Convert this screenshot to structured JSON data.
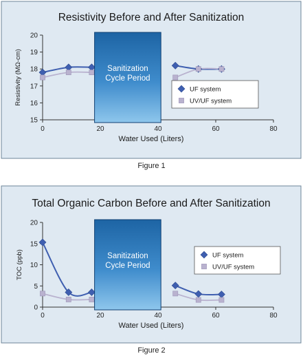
{
  "colors": {
    "panel_bg": "#dfe9f2",
    "panel_border": "#6d8598",
    "uf": "#3f5fb0",
    "uvuf": "#b9b2cf",
    "cycle_dark": "#1d64a4",
    "cycle_light": "#8ec6ec"
  },
  "icons": {
    "uf_marker": "diamond-icon",
    "uvuf_marker": "square-icon"
  },
  "chart_data": [
    {
      "type": "line",
      "title": "Resistivity Before and After Sanitization",
      "xlabel": "Water Used (Liters)",
      "ylabel": "Resistivity (MΩ-cm)",
      "xlim": [
        0,
        80
      ],
      "ylim": [
        15,
        20
      ],
      "x_ticks": [
        "0",
        "20",
        "40",
        "60",
        "80"
      ],
      "y_ticks": [
        "15",
        "16",
        "17",
        "18",
        "19",
        "20"
      ],
      "grid": false,
      "legend_position": "right",
      "annotation": {
        "label": [
          "Sanitization",
          "Cycle Period"
        ],
        "x_start": 18,
        "x_end": 41
      },
      "series": [
        {
          "name": "UF system",
          "marker": "diamond",
          "x": [
            0,
            9,
            17,
            46,
            54,
            62
          ],
          "y": [
            17.8,
            18.1,
            18.1,
            18.2,
            18.0,
            18.0
          ]
        },
        {
          "name": "UV/UF system",
          "marker": "square",
          "x": [
            0,
            9,
            17,
            46,
            54,
            62
          ],
          "y": [
            17.5,
            17.8,
            17.8,
            17.5,
            18.0,
            18.0
          ]
        }
      ],
      "caption": "Figure 1"
    },
    {
      "type": "line",
      "title": "Total Organic Carbon Before and After Sanitization",
      "xlabel": "Water Used (Liters)",
      "ylabel": "TOC (ppb)",
      "xlim": [
        0,
        80
      ],
      "ylim": [
        0,
        20
      ],
      "x_ticks": [
        "0",
        "20",
        "40",
        "60",
        "80"
      ],
      "y_ticks": [
        "0",
        "5",
        "10",
        "15",
        "20"
      ],
      "grid": false,
      "legend_position": "right",
      "annotation": {
        "label": [
          "Sanitization",
          "Cycle Period"
        ],
        "x_start": 18,
        "x_end": 41
      },
      "series": [
        {
          "name": "UF system",
          "marker": "diamond",
          "x": [
            0,
            9,
            17,
            46,
            54,
            62
          ],
          "y": [
            15.3,
            3.5,
            3.5,
            5.1,
            3.1,
            3.0
          ]
        },
        {
          "name": "UV/UF system",
          "marker": "square",
          "x": [
            0,
            9,
            17,
            46,
            54,
            62
          ],
          "y": [
            3.2,
            1.8,
            1.8,
            3.2,
            1.7,
            1.7
          ]
        }
      ],
      "caption": "Figure 2"
    }
  ]
}
